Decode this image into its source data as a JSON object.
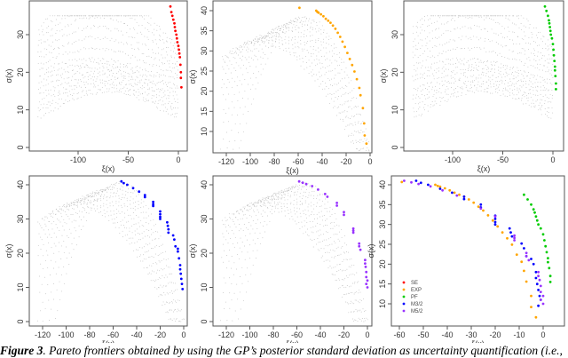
{
  "caption": {
    "label": "Figure 3",
    "text": ". Pareto frontiers obtained by using the GP’s posterior standard deviation as uncertainty quantification (i.e.,"
  },
  "chart_data": [
    {
      "type": "scatter",
      "xlabel": "ξ(x)",
      "ylabel": "σ(x)",
      "xticks": [
        -100,
        -50,
        0
      ],
      "yticks": [
        0,
        10,
        20,
        30
      ],
      "series": [
        {
          "color": "#ff0000",
          "points": [
            [
              -8,
              37.5
            ],
            [
              -7,
              36
            ],
            [
              -6,
              35
            ],
            [
              -5,
              34
            ],
            [
              -4,
              33
            ],
            [
              -3.5,
              32
            ],
            [
              -3,
              31
            ],
            [
              -2,
              30
            ],
            [
              -1.5,
              29
            ],
            [
              -1,
              28
            ],
            [
              0,
              27
            ],
            [
              0.5,
              26
            ],
            [
              1,
              25
            ],
            [
              1.5,
              24
            ],
            [
              2,
              22
            ],
            [
              2.5,
              20
            ],
            [
              2.5,
              18.5
            ],
            [
              3,
              16
            ]
          ]
        }
      ]
    },
    {
      "type": "scatter",
      "xlabel": "ξ(x)",
      "ylabel": "σ(x)",
      "xticks": [
        -120,
        -100,
        -80,
        -60,
        -40,
        -20,
        0
      ],
      "yticks": [
        10,
        15,
        20,
        25,
        30,
        35,
        40
      ],
      "series": [
        {
          "color": "#ffa500",
          "points": [
            [
              -59,
              40.7
            ],
            [
              -45,
              40
            ],
            [
              -44,
              39.7
            ],
            [
              -43,
              39.5
            ],
            [
              -41,
              39.1
            ],
            [
              -39,
              38.6
            ],
            [
              -37,
              38
            ],
            [
              -35,
              37.5
            ],
            [
              -33,
              37
            ],
            [
              -31,
              36.3
            ],
            [
              -29,
              35.5
            ],
            [
              -27,
              34.5
            ],
            [
              -25,
              33.5
            ],
            [
              -23,
              32.3
            ],
            [
              -21,
              31
            ],
            [
              -19,
              29.5
            ],
            [
              -17,
              28
            ],
            [
              -15,
              26.5
            ],
            [
              -13,
              24.9
            ],
            [
              -11,
              23
            ],
            [
              -9,
              20.8
            ],
            [
              -8,
              19
            ],
            [
              -6,
              15.8
            ],
            [
              -5,
              12
            ],
            [
              -4.5,
              9
            ],
            [
              -3,
              7
            ]
          ]
        }
      ]
    },
    {
      "type": "scatter",
      "xlabel": "ξ(x)",
      "ylabel": "σ(x)",
      "xticks": [
        -100,
        -50,
        0
      ],
      "yticks": [
        0,
        10,
        20,
        30
      ],
      "series": [
        {
          "color": "#00cc00",
          "points": [
            [
              -8,
              37.5
            ],
            [
              -6.5,
              36.3
            ],
            [
              -5,
              35
            ],
            [
              -4,
              33.8
            ],
            [
              -3.5,
              33
            ],
            [
              -3,
              32
            ],
            [
              -2.5,
              31
            ],
            [
              -2,
              30
            ],
            [
              -1,
              29
            ],
            [
              0,
              27.5
            ],
            [
              0.5,
              26
            ],
            [
              1,
              24.5
            ],
            [
              1.5,
              23
            ],
            [
              2,
              21.5
            ],
            [
              2,
              20.5
            ],
            [
              2.5,
              19
            ],
            [
              3,
              17
            ],
            [
              3,
              15.5
            ]
          ]
        }
      ]
    },
    {
      "type": "scatter",
      "xlabel": "ξ(x)",
      "ylabel": "σ(x)",
      "xticks": [
        -120,
        -100,
        -80,
        -60,
        -40,
        -20,
        0
      ],
      "yticks": [
        0,
        10,
        20,
        30,
        40
      ],
      "series": [
        {
          "color": "#0000ff",
          "points": [
            [
              -53,
              41
            ],
            [
              -51,
              40.5
            ],
            [
              -48,
              40
            ],
            [
              -43,
              39
            ],
            [
              -38,
              38
            ],
            [
              -33,
              37
            ],
            [
              -33,
              36.4
            ],
            [
              -26,
              35
            ],
            [
              -26,
              34.3
            ],
            [
              -26,
              33.8
            ],
            [
              -20,
              32.2
            ],
            [
              -20,
              31.4
            ],
            [
              -20,
              30.6
            ],
            [
              -20,
              30
            ],
            [
              -14,
              29
            ],
            [
              -13.5,
              28
            ],
            [
              -13,
              27
            ],
            [
              -13,
              26
            ],
            [
              -9,
              25.2
            ],
            [
              -8,
              24
            ],
            [
              -7,
              22
            ],
            [
              -5,
              21.3
            ],
            [
              -5,
              20.5
            ],
            [
              -4,
              18.5
            ],
            [
              -3,
              16.5
            ],
            [
              -3,
              15.3
            ],
            [
              -2.5,
              14
            ],
            [
              -2,
              12.5
            ],
            [
              -1.5,
              11
            ],
            [
              -1,
              9.5
            ]
          ]
        }
      ]
    },
    {
      "type": "scatter",
      "xlabel": "ξ(x)",
      "ylabel": "σ(x)",
      "xticks": [
        -120,
        -100,
        -80,
        -60,
        -40,
        -20,
        0
      ],
      "yticks": [
        0,
        10,
        20,
        30,
        40
      ],
      "series": [
        {
          "color": "#9933ff",
          "points": [
            [
              -58,
              41
            ],
            [
              -55,
              40.6
            ],
            [
              -52,
              40.2
            ],
            [
              -47,
              39.6
            ],
            [
              -42,
              38.6
            ],
            [
              -36,
              37.3
            ],
            [
              -34,
              36.5
            ],
            [
              -26,
              34.7
            ],
            [
              -26,
              33.9
            ],
            [
              -20,
              32
            ],
            [
              -20,
              31.2
            ],
            [
              -12,
              27.2
            ],
            [
              -12,
              26.6
            ],
            [
              -12,
              26
            ],
            [
              -7,
              22.8
            ],
            [
              -7,
              22
            ],
            [
              -6,
              21
            ],
            [
              -2,
              18
            ],
            [
              -2,
              17
            ],
            [
              -1.5,
              16
            ],
            [
              -1,
              14.5
            ],
            [
              -1,
              13
            ],
            [
              0,
              12
            ],
            [
              -1,
              11
            ],
            [
              0,
              10
            ]
          ]
        }
      ]
    },
    {
      "type": "scatter",
      "xlabel": "ξ(x)",
      "ylabel": "σ(x)",
      "xticks": [
        -60,
        -50,
        -40,
        -30,
        -20,
        -10,
        0
      ],
      "yticks": [
        10,
        15,
        20,
        25,
        30,
        35,
        40
      ],
      "legend": {
        "position": "bottom-left",
        "entries": [
          {
            "name": "SE",
            "color": "#ff0000"
          },
          {
            "name": "EXP",
            "color": "#ffa500"
          },
          {
            "name": "PF",
            "color": "#00cc00"
          },
          {
            "name": "M3/2",
            "color": "#0000ff"
          },
          {
            "name": "M5/2",
            "color": "#9933ff"
          }
        ]
      },
      "series": [
        {
          "name": "EXP",
          "color": "#ffa500",
          "points": [
            [
              -59,
              40.7
            ],
            [
              -45,
              40
            ],
            [
              -44,
              39.7
            ],
            [
              -43,
              39.5
            ],
            [
              -41,
              39.1
            ],
            [
              -39,
              38.6
            ],
            [
              -37,
              38
            ],
            [
              -35,
              37.5
            ],
            [
              -33,
              37
            ],
            [
              -31,
              36.3
            ],
            [
              -29,
              35.5
            ],
            [
              -27,
              34.5
            ],
            [
              -25,
              33.5
            ],
            [
              -23,
              32.3
            ],
            [
              -21,
              31
            ],
            [
              -19,
              29.5
            ],
            [
              -17,
              28
            ],
            [
              -15,
              26.5
            ],
            [
              -13,
              24.9
            ],
            [
              -11,
              22.4
            ],
            [
              -9,
              20.6
            ],
            [
              -8,
              18.3
            ],
            [
              -7,
              15.6
            ],
            [
              -5,
              12
            ],
            [
              -5,
              9.2
            ],
            [
              -3,
              6.6
            ]
          ]
        },
        {
          "name": "PF",
          "color": "#00cc00",
          "points": [
            [
              -8,
              37.5
            ],
            [
              -6.5,
              36.3
            ],
            [
              -5,
              35
            ],
            [
              -4,
              33.8
            ],
            [
              -3.5,
              33
            ],
            [
              -3,
              32
            ],
            [
              -2.5,
              31
            ],
            [
              -2,
              30
            ],
            [
              -1,
              29
            ],
            [
              0,
              27.5
            ],
            [
              0.5,
              26
            ],
            [
              1,
              24.5
            ],
            [
              1.5,
              23
            ],
            [
              2,
              21.5
            ],
            [
              2,
              20.5
            ],
            [
              2.5,
              19
            ],
            [
              3,
              17
            ],
            [
              3,
              15.5
            ]
          ]
        },
        {
          "name": "M3/2",
          "color": "#0000ff",
          "points": [
            [
              -53,
              41
            ],
            [
              -51,
              40.5
            ],
            [
              -48,
              40
            ],
            [
              -43,
              39
            ],
            [
              -38,
              38
            ],
            [
              -33,
              37
            ],
            [
              -33,
              36.4
            ],
            [
              -26,
              35
            ],
            [
              -26,
              34.3
            ],
            [
              -20,
              32.2
            ],
            [
              -20,
              31.4
            ],
            [
              -20,
              30.6
            ],
            [
              -20,
              30
            ],
            [
              -14,
              29
            ],
            [
              -13.5,
              28
            ],
            [
              -13,
              27
            ],
            [
              -9,
              25.2
            ],
            [
              -8,
              24
            ],
            [
              -7,
              22
            ],
            [
              -5,
              21.3
            ],
            [
              -4,
              20
            ],
            [
              -3,
              18
            ],
            [
              -3,
              16.5
            ],
            [
              -2.5,
              15
            ],
            [
              -2,
              13.5
            ],
            [
              -1.5,
              12
            ],
            [
              -1,
              11
            ],
            [
              -2,
              9.5
            ]
          ]
        },
        {
          "name": "M5/2",
          "color": "#9933ff",
          "points": [
            [
              -58,
              41
            ],
            [
              -55,
              40.6
            ],
            [
              -52,
              40.2
            ],
            [
              -47,
              39.6
            ],
            [
              -42,
              38.6
            ],
            [
              -36,
              37.3
            ],
            [
              -26,
              34
            ],
            [
              -20,
              32
            ],
            [
              -12,
              27.2
            ],
            [
              -12,
              26.6
            ],
            [
              -12,
              26
            ],
            [
              -7,
              22.8
            ],
            [
              -7,
              22
            ],
            [
              -6,
              21
            ],
            [
              -2,
              18
            ],
            [
              -2,
              17
            ],
            [
              -1.5,
              16
            ],
            [
              -1,
              14.5
            ],
            [
              -1,
              13
            ],
            [
              0,
              12
            ],
            [
              -1,
              11
            ],
            [
              0,
              10
            ]
          ]
        }
      ]
    }
  ]
}
